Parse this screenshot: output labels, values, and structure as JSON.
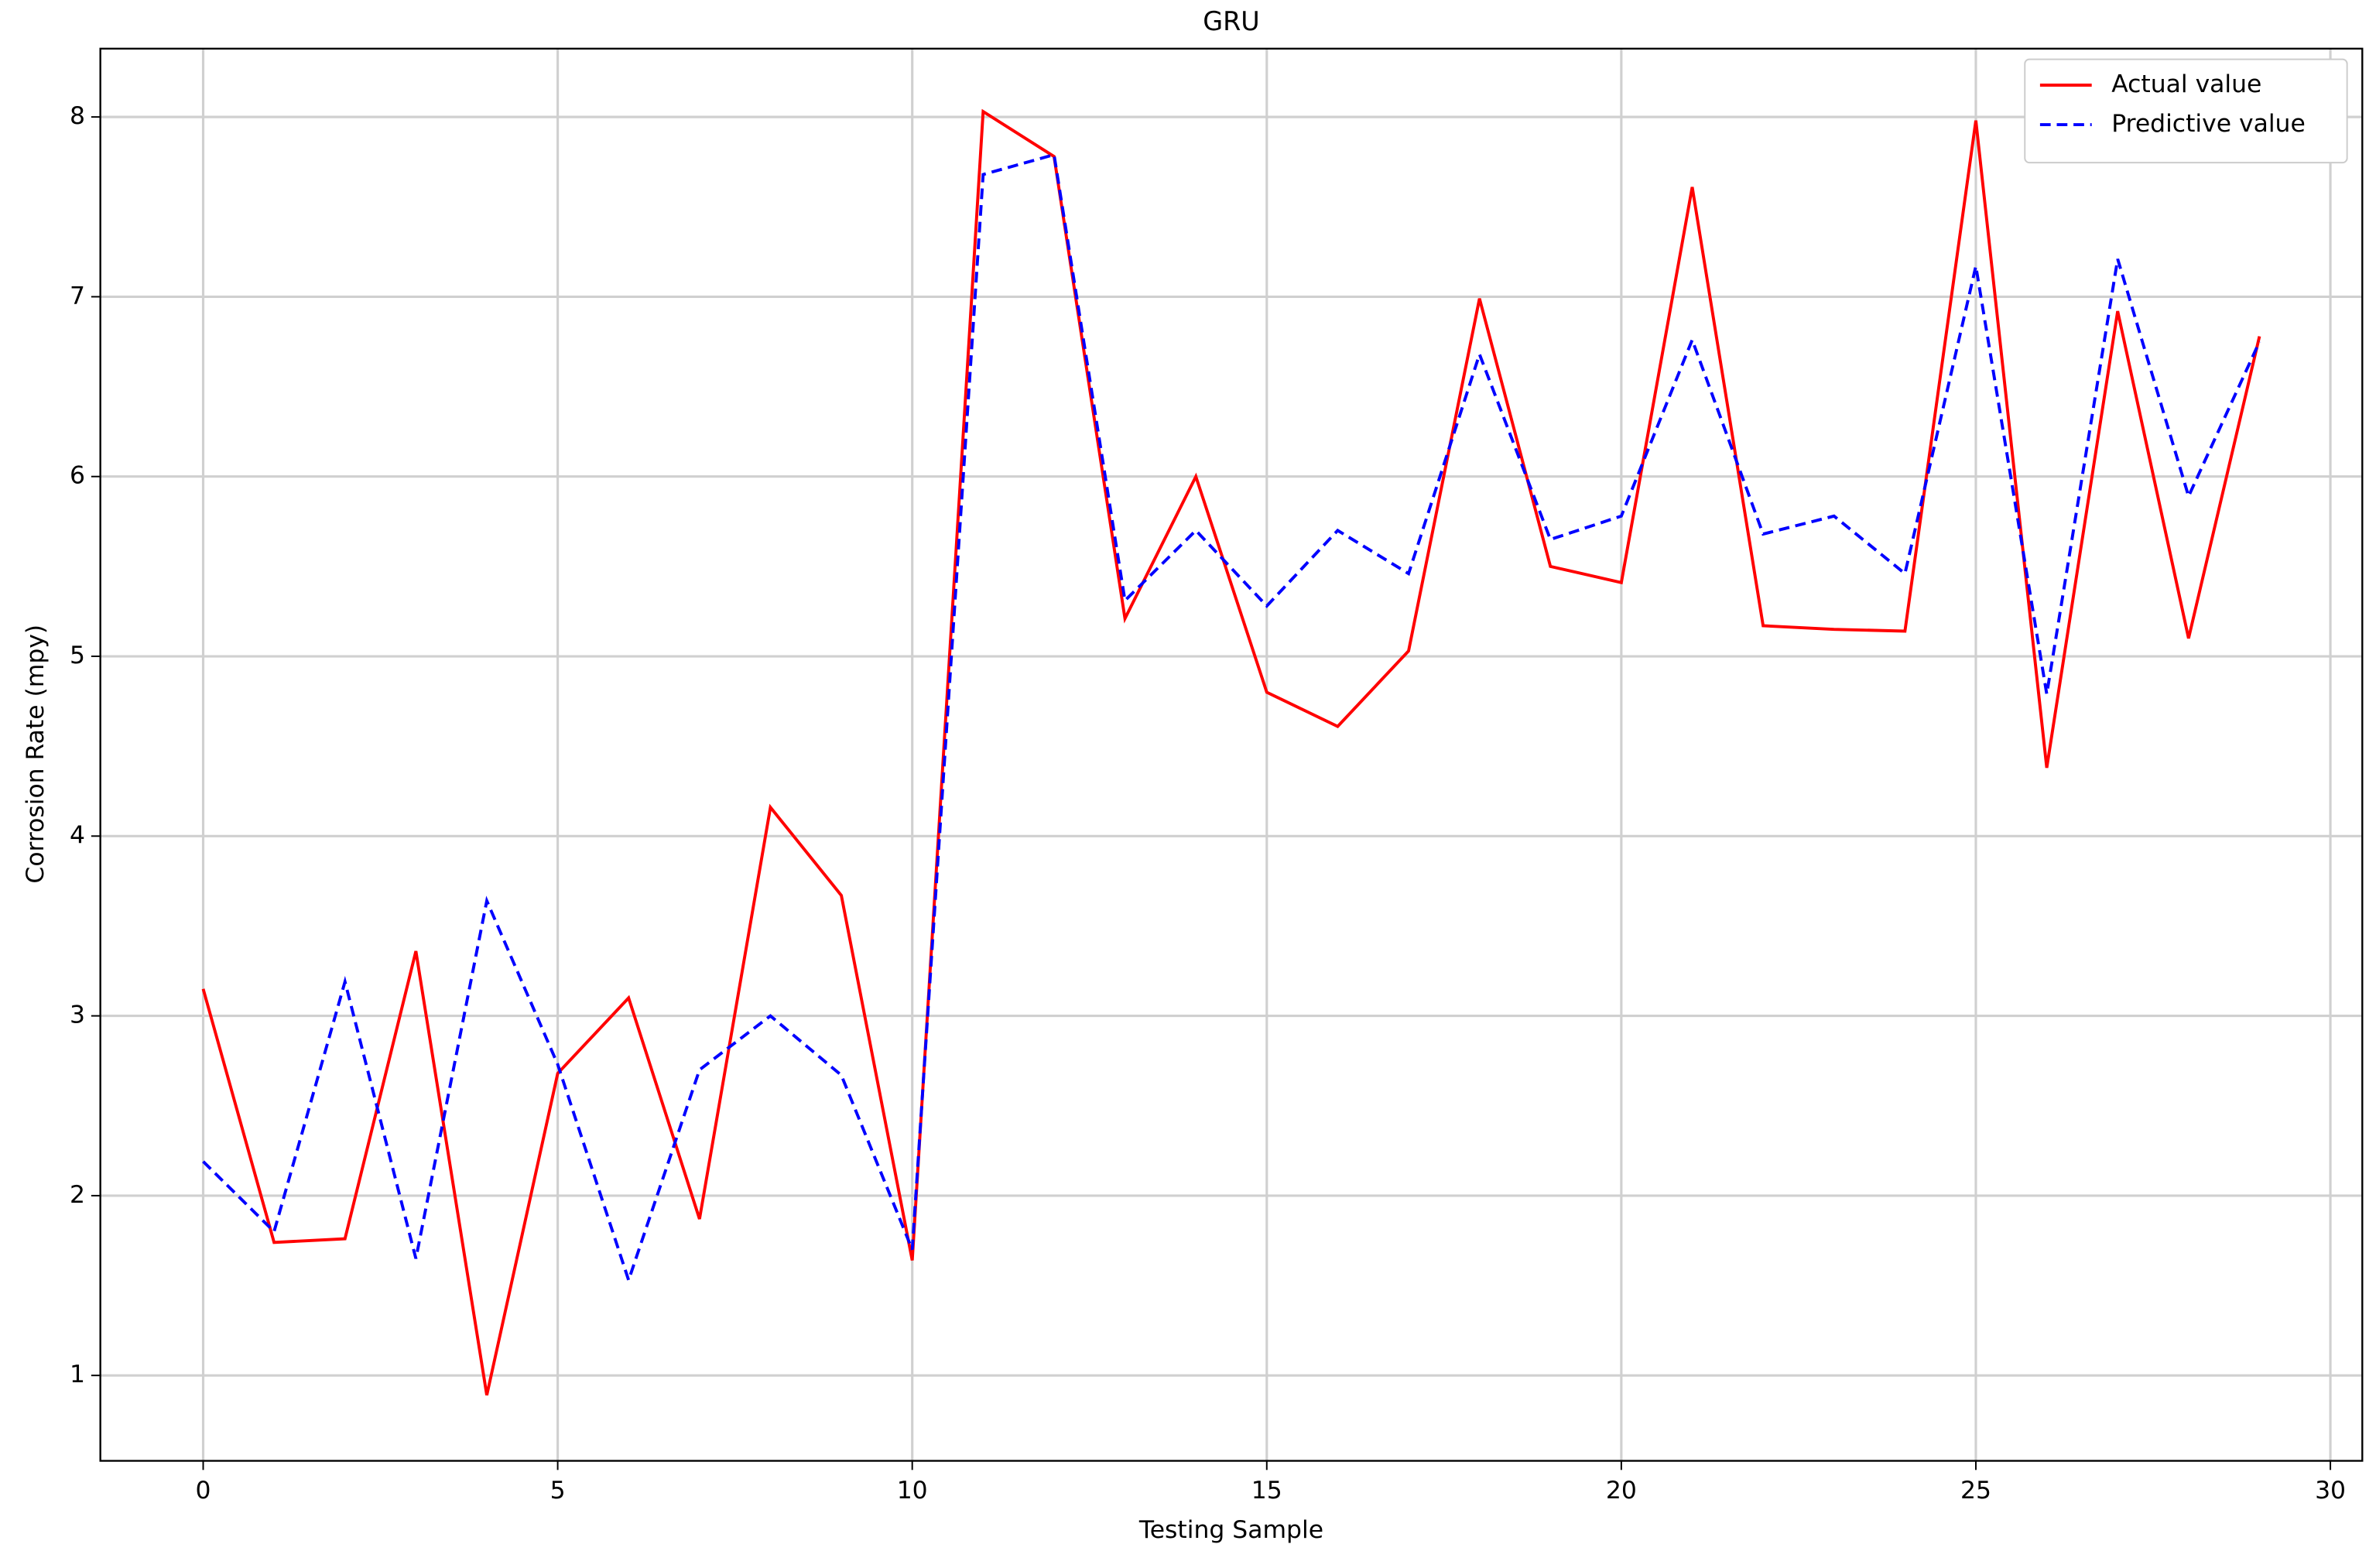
{
  "chart_data": {
    "type": "line",
    "title": "GRU",
    "xlabel": "Testing Sample",
    "ylabel": "Corrosion Rate (mpy)",
    "x": [
      0,
      1,
      2,
      3,
      4,
      5,
      6,
      7,
      8,
      9,
      10,
      11,
      12,
      13,
      14,
      15,
      16,
      17,
      18,
      19,
      20,
      21,
      22,
      23,
      24,
      25,
      26,
      27,
      28,
      29
    ],
    "series": [
      {
        "name": "Actual value",
        "color": "#ff0000",
        "dash": "solid",
        "values": [
          3.15,
          1.74,
          1.76,
          3.36,
          0.89,
          2.68,
          3.1,
          1.87,
          4.16,
          3.67,
          1.64,
          8.03,
          7.78,
          5.21,
          6.0,
          4.8,
          4.61,
          5.03,
          6.99,
          5.5,
          5.41,
          7.61,
          5.17,
          5.15,
          5.14,
          7.98,
          4.38,
          6.92,
          5.1,
          6.78
        ]
      },
      {
        "name": "Predictive value",
        "color": "#0000ff",
        "dash": "dashed",
        "values": [
          2.19,
          1.8,
          3.19,
          1.65,
          3.64,
          2.73,
          1.53,
          2.7,
          3.0,
          2.67,
          1.7,
          7.68,
          7.79,
          5.31,
          5.7,
          5.28,
          5.7,
          5.46,
          6.68,
          5.65,
          5.78,
          6.76,
          5.68,
          5.78,
          5.46,
          7.17,
          4.79,
          7.21,
          5.89,
          6.75
        ]
      }
    ],
    "xlim": [
      -1.45,
      30.45
    ],
    "xticks": [
      0,
      5,
      10,
      15,
      20,
      25,
      30
    ],
    "ylim": [
      0.525,
      8.38
    ],
    "yticks": [
      1,
      2,
      3,
      4,
      5,
      6,
      7,
      8
    ],
    "grid": true,
    "legend": "upper right"
  }
}
